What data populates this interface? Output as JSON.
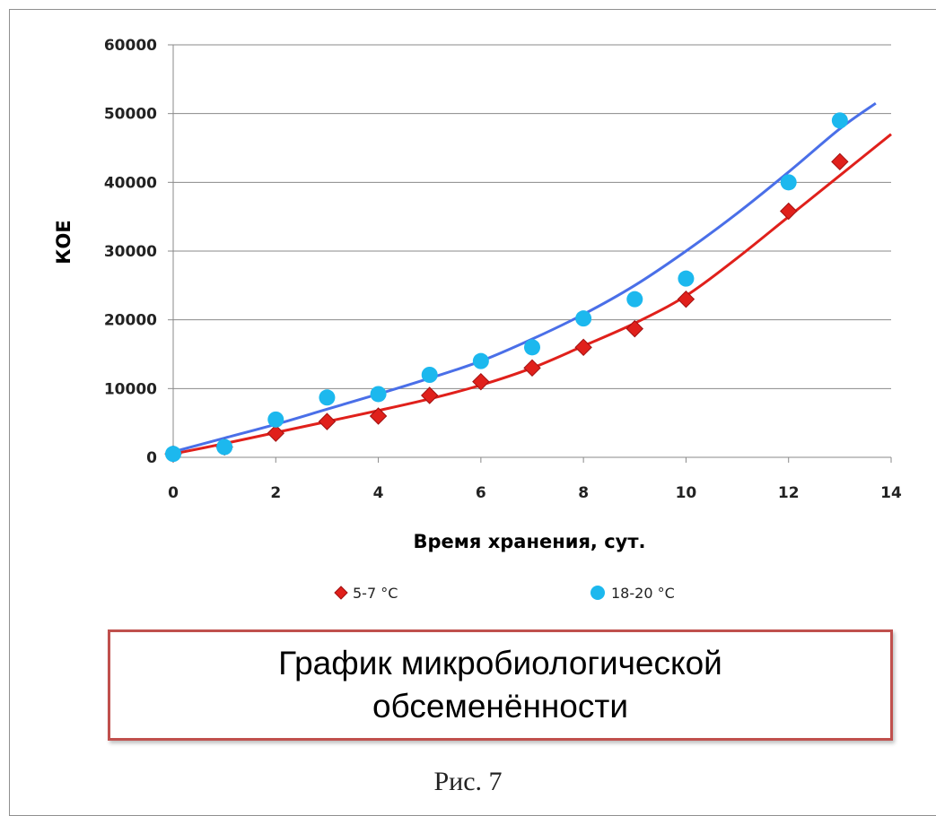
{
  "chart_data": {
    "type": "scatter",
    "title": "",
    "xlabel": "Время хранения, сут.",
    "ylabel": "КОЕ",
    "xlim": [
      0,
      14
    ],
    "ylim": [
      0,
      60000
    ],
    "x_ticks": [
      "0",
      "2",
      "4",
      "6",
      "8",
      "10",
      "12",
      "14"
    ],
    "y_ticks": [
      "0",
      "10000",
      "20000",
      "30000",
      "40000",
      "50000",
      "60000"
    ],
    "grid": "horizontal",
    "legend_position": "bottom",
    "series": [
      {
        "name": "5-7 °C",
        "marker": "diamond",
        "color": "#e0201b",
        "trendline_color": "#e0201b",
        "x": [
          0,
          1,
          2,
          3,
          4,
          5,
          6,
          7,
          8,
          9,
          10,
          12,
          13
        ],
        "y": [
          500,
          1500,
          3500,
          5200,
          6000,
          9000,
          11000,
          13000,
          16000,
          18700,
          23000,
          35800,
          43000
        ],
        "trendline": {
          "x": [
            0,
            1,
            2,
            3,
            4,
            5,
            6,
            7,
            8,
            9,
            10,
            11,
            12,
            13,
            14
          ],
          "y": [
            500,
            2000,
            3600,
            5200,
            6800,
            8500,
            10500,
            13000,
            16200,
            19500,
            23500,
            29000,
            35000,
            41000,
            47000
          ]
        }
      },
      {
        "name": "18-20 °C",
        "marker": "circle",
        "color": "#1cb8ee",
        "trendline_color": "#4a6fe8",
        "x": [
          0,
          1,
          2,
          3,
          4,
          5,
          6,
          7,
          8,
          9,
          10,
          12,
          13
        ],
        "y": [
          500,
          1500,
          5500,
          8700,
          9200,
          12000,
          14000,
          16000,
          20200,
          23000,
          26000,
          40000,
          49000
        ],
        "trendline": {
          "x": [
            0,
            1,
            2,
            3,
            4,
            5,
            6,
            7,
            8,
            9,
            10,
            11,
            12,
            13,
            13.7
          ],
          "y": [
            800,
            2800,
            4800,
            7000,
            9200,
            11500,
            14000,
            17200,
            20800,
            25000,
            30000,
            35500,
            41500,
            47800,
            51500
          ]
        }
      }
    ]
  },
  "caption": "График микробиологической\nобсеменённости",
  "figure_label": "Рис. 7"
}
